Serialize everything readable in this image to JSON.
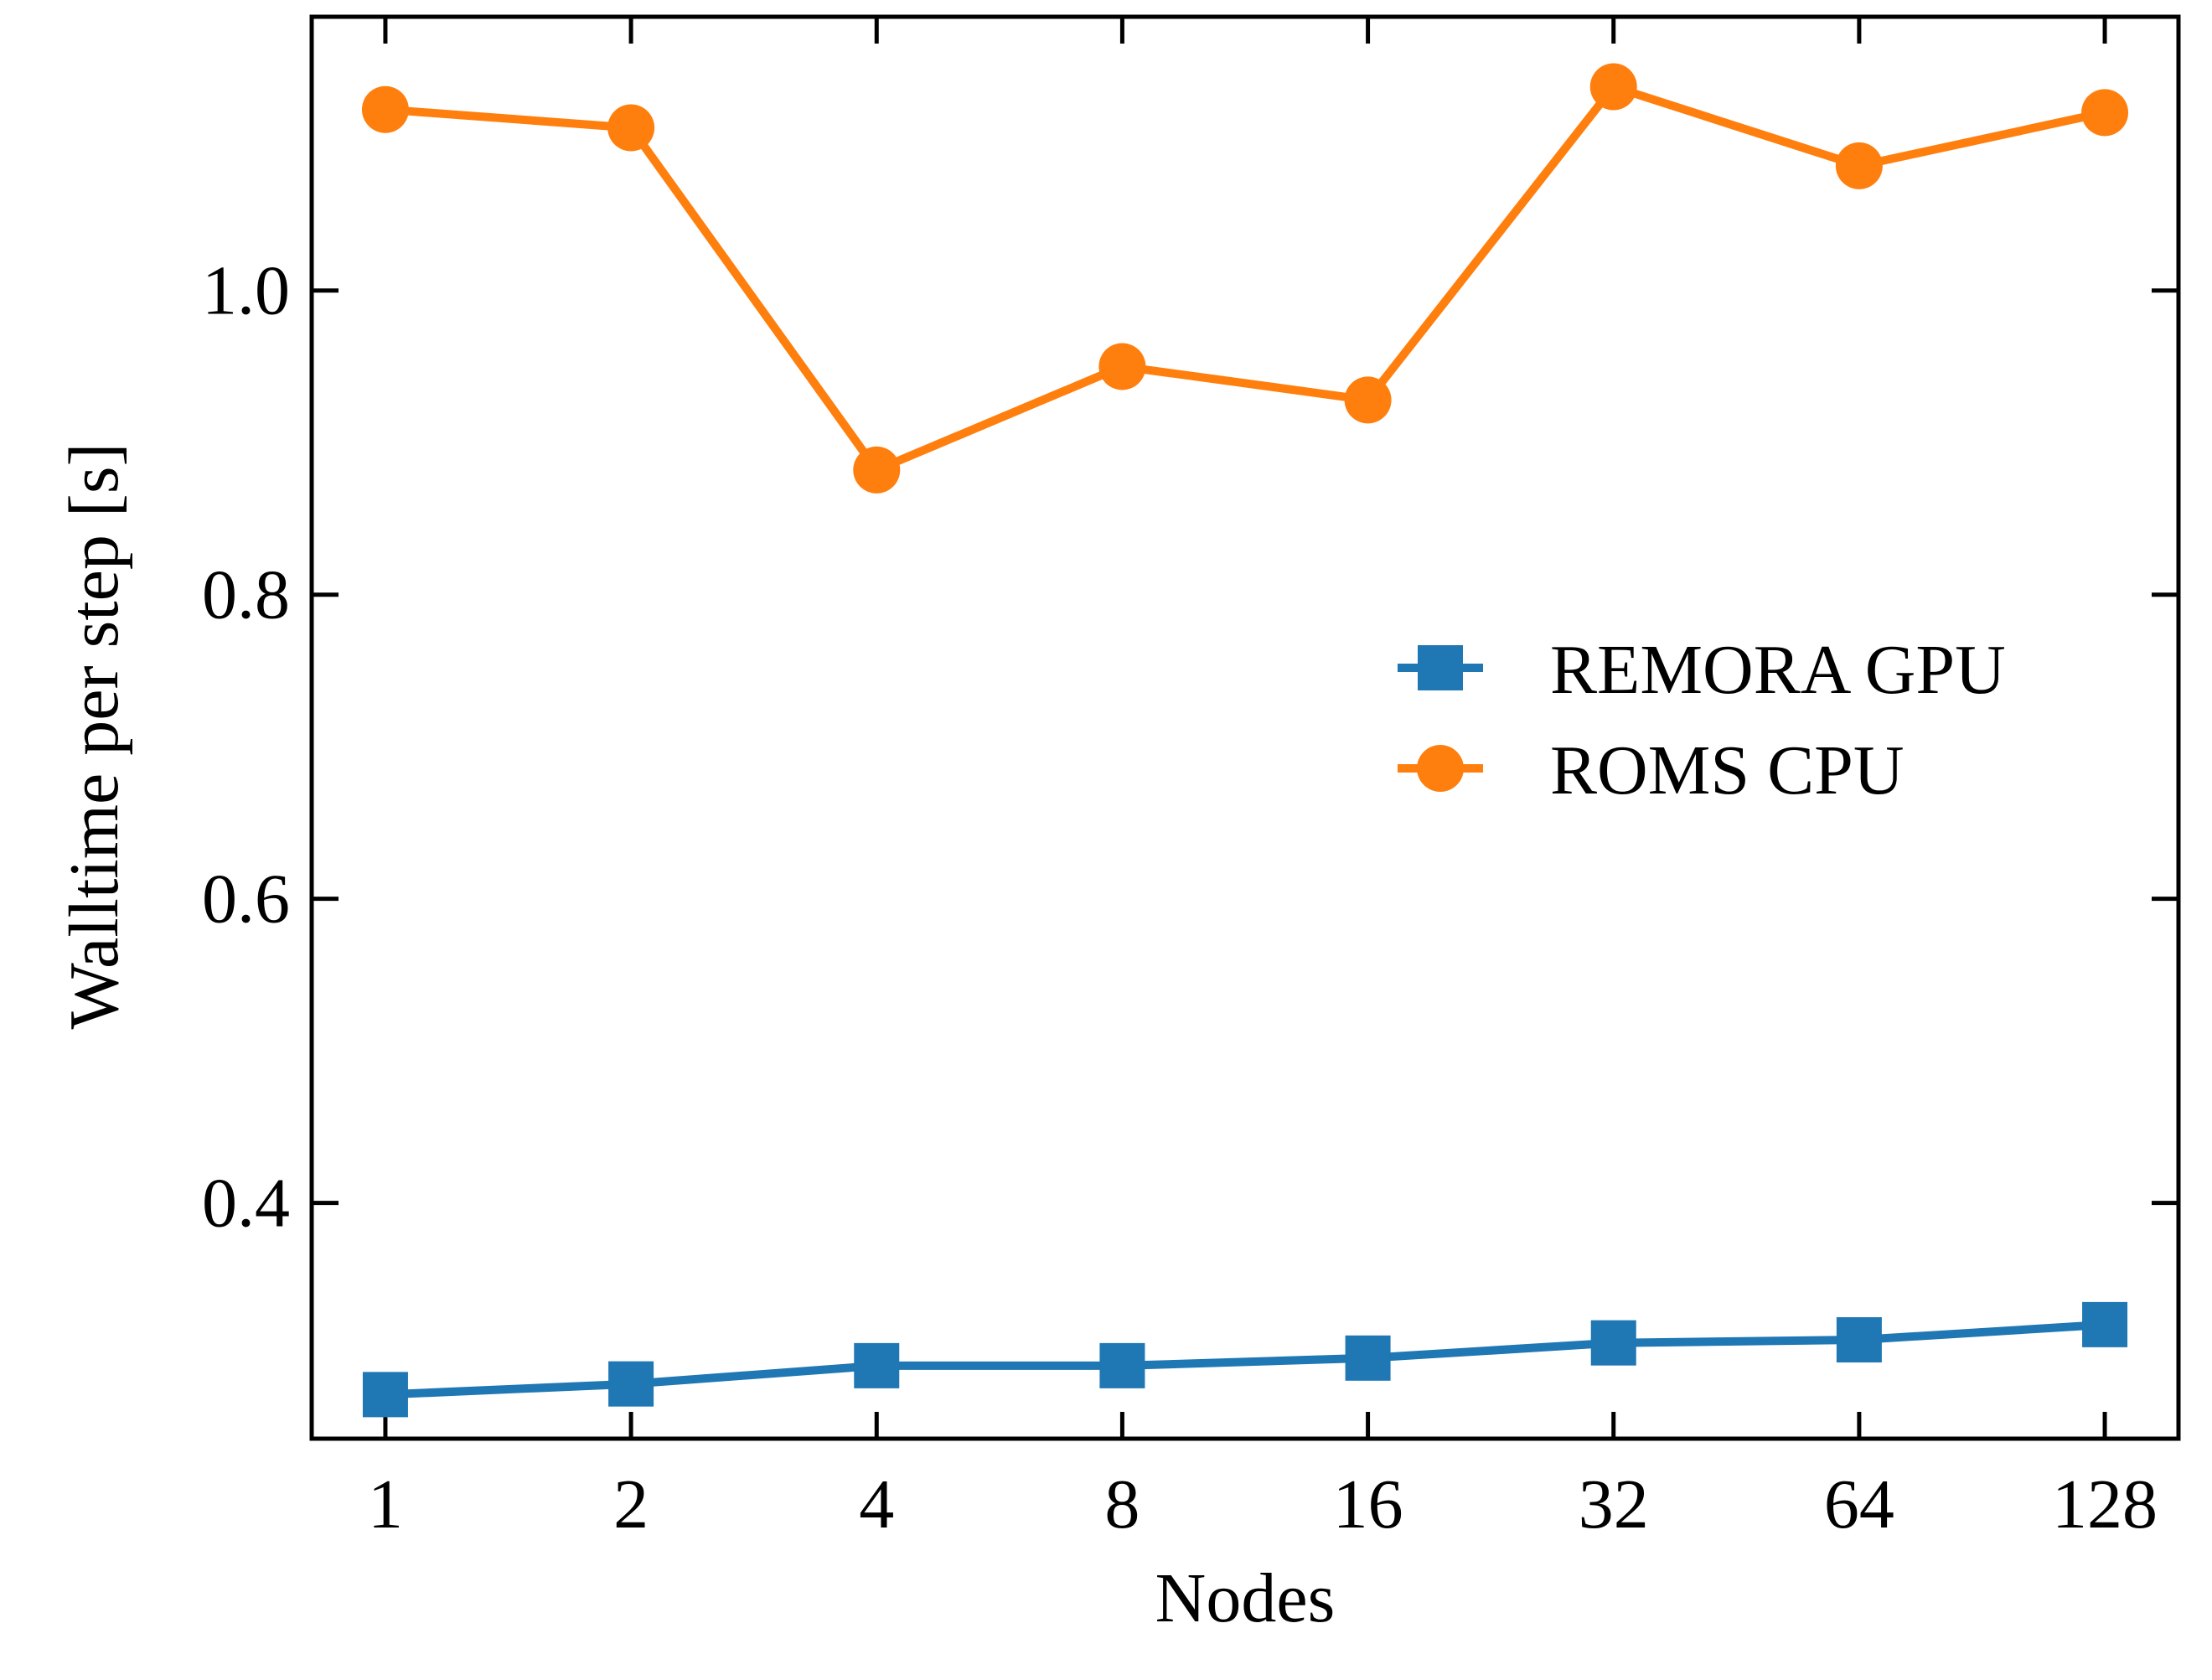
{
  "chart_data": {
    "type": "line",
    "xlabel": "Nodes",
    "ylabel": "Walltime per step [s]",
    "x": [
      1,
      2,
      4,
      8,
      16,
      32,
      64,
      128
    ],
    "x_tick_labels": [
      "1",
      "2",
      "4",
      "8",
      "16",
      "32",
      "64",
      "128"
    ],
    "x_scale": "log2",
    "ylim": [
      0.245,
      1.18
    ],
    "y_ticks": [
      0.4,
      0.6,
      0.8,
      1.0
    ],
    "y_tick_labels": [
      "0.4",
      "0.6",
      "0.8",
      "1.0"
    ],
    "grid": false,
    "legend_position": "center-right",
    "series": [
      {
        "name": "REMORA GPU",
        "color": "#1f77b4",
        "marker": "square",
        "values": [
          0.274,
          0.281,
          0.293,
          0.293,
          0.298,
          0.308,
          0.31,
          0.32
        ]
      },
      {
        "name": "ROMS CPU",
        "color": "#ff7f0e",
        "marker": "circle",
        "values": [
          1.119,
          1.107,
          0.882,
          0.95,
          0.928,
          1.134,
          1.082,
          1.117
        ]
      }
    ]
  }
}
